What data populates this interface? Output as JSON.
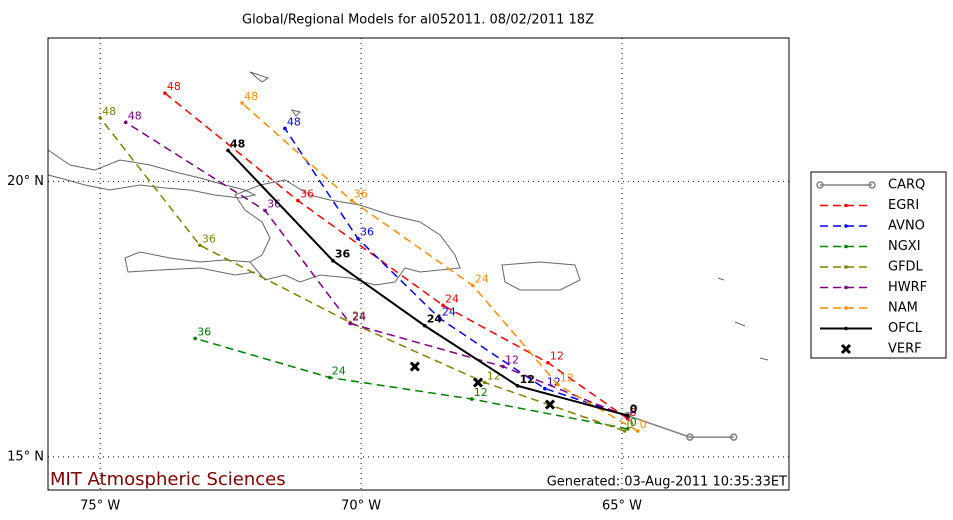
{
  "chart_data": {
    "type": "line",
    "title": "Global/Regional Models for al052011. 08/02/2011 18Z",
    "footer_left": "MIT Atmospheric Sciences",
    "footer_right": "Generated: 03-Aug-2011 10:35:33ET",
    "xlim": [
      -76,
      -61.8
    ],
    "ylim": [
      14.4,
      22.6
    ],
    "xticks": [
      {
        "value": -75,
        "label": "75° W"
      },
      {
        "value": -70,
        "label": "70° W"
      },
      {
        "value": -65,
        "label": "65° W"
      }
    ],
    "yticks": [
      {
        "value": 15,
        "label": "15° N"
      },
      {
        "value": 20,
        "label": "20° N"
      }
    ],
    "grid": true,
    "legend": "right",
    "series": [
      {
        "name": "CARQ",
        "color": "#808080",
        "style": "solid",
        "marker": "circle",
        "x": [
          -62.86,
          -63.7,
          -64.89
        ],
        "y": [
          15.36,
          15.36,
          15.75
        ]
      },
      {
        "name": "EGRI",
        "color": "#ff0000",
        "style": "dashed",
        "marker": "dot",
        "x": [
          -64.89,
          -66.42,
          -68.43,
          -71.21,
          -73.76
        ],
        "y": [
          15.69,
          16.71,
          17.75,
          19.65,
          21.6
        ],
        "hours": [
          0,
          12,
          24,
          36,
          48
        ]
      },
      {
        "name": "AVNO",
        "color": "#0000ff",
        "style": "dashed",
        "marker": "dot",
        "x": [
          -64.89,
          -66.48,
          -68.49,
          -70.06,
          -71.46
        ],
        "y": [
          15.75,
          16.24,
          17.51,
          18.96,
          20.96
        ],
        "hours": [
          0,
          12,
          24,
          36,
          48
        ]
      },
      {
        "name": "NGXI",
        "color": "#008000",
        "style": "dashed",
        "marker": "dot",
        "x": [
          -64.89,
          -67.88,
          -70.6,
          -73.18
        ],
        "y": [
          15.51,
          16.05,
          16.44,
          17.15
        ],
        "hours": [
          0,
          12,
          24,
          36
        ]
      },
      {
        "name": "GFDL",
        "color": "#808000",
        "style": "dashed",
        "marker": "dot",
        "x": [
          -64.95,
          -67.63,
          -70.21,
          -73.09,
          -75.0
        ],
        "y": [
          15.47,
          16.35,
          17.44,
          18.84,
          21.15
        ],
        "hours": [
          0,
          12,
          24,
          36,
          48
        ]
      },
      {
        "name": "HWRF",
        "color": "#800080",
        "style": "dashed",
        "marker": "dot",
        "x": [
          -64.89,
          -67.28,
          -70.21,
          -71.84,
          -74.51
        ],
        "y": [
          15.73,
          16.64,
          17.42,
          19.47,
          21.07
        ],
        "hours": [
          0,
          12,
          24,
          36,
          48
        ]
      },
      {
        "name": "NAM",
        "color": "#ff8c00",
        "style": "dashed",
        "marker": "dot",
        "x": [
          -64.7,
          -66.23,
          -67.86,
          -70.18,
          -72.28
        ],
        "y": [
          15.47,
          16.31,
          18.11,
          19.65,
          21.42
        ],
        "hours": [
          0,
          12,
          24,
          36,
          48
        ]
      },
      {
        "name": "OFCL",
        "color": "#000000",
        "style": "solid",
        "marker": "dot",
        "x": [
          -64.89,
          -67.0,
          -68.78,
          -70.54,
          -72.55
        ],
        "y": [
          15.75,
          16.29,
          17.38,
          18.56,
          20.56
        ],
        "hours": [
          0,
          12,
          24,
          36,
          48
        ]
      },
      {
        "name": "VERF",
        "color": "#000000",
        "style": "none",
        "marker": "x",
        "x": [
          -68.97,
          -67.76,
          -66.38
        ],
        "y": [
          16.64,
          16.35,
          15.95
        ]
      }
    ]
  }
}
